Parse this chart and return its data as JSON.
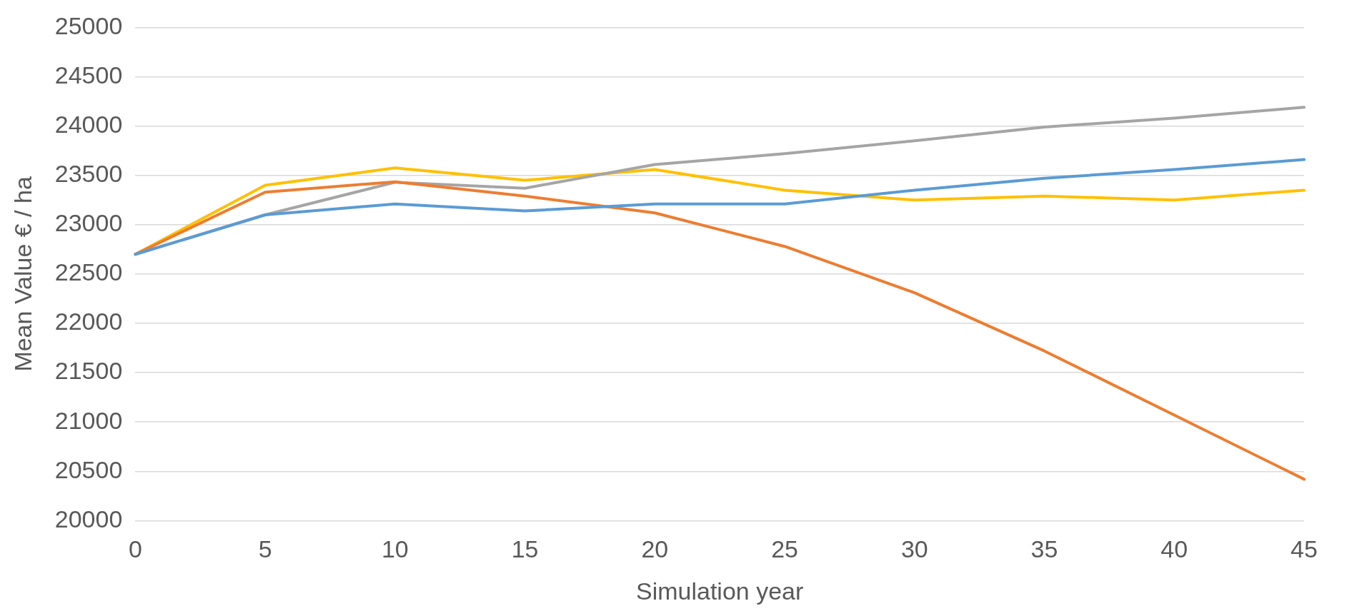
{
  "chart_data": {
    "type": "line",
    "xlabel": "Simulation year",
    "ylabel": "Mean Value € / ha",
    "categories": [
      "0",
      "5",
      "10",
      "15",
      "20",
      "25",
      "30",
      "35",
      "40",
      "45"
    ],
    "series": [
      {
        "color": "#5b9bd5",
        "values": [
          22700,
          23100,
          23210,
          23140,
          23210,
          23210,
          23350,
          23470,
          23560,
          23660
        ]
      },
      {
        "color": "#ed7d31",
        "values": [
          22700,
          23330,
          23435,
          23290,
          23120,
          22780,
          22310,
          21720,
          21070,
          20420
        ]
      },
      {
        "color": "#a5a5a5",
        "values": [
          22700,
          23100,
          23430,
          23370,
          23610,
          23720,
          23850,
          23990,
          24080,
          24190
        ]
      },
      {
        "color": "#ffc000",
        "values": [
          22700,
          23400,
          23575,
          23450,
          23560,
          23350,
          23250,
          23290,
          23250,
          23350
        ]
      }
    ],
    "ylim": [
      20000,
      25000
    ],
    "yticks": [
      20000,
      20500,
      21000,
      21500,
      22000,
      22500,
      23000,
      23500,
      24000,
      24500,
      25000
    ],
    "grid": "y",
    "legend": false,
    "marker": "none",
    "line_style": "solid"
  }
}
